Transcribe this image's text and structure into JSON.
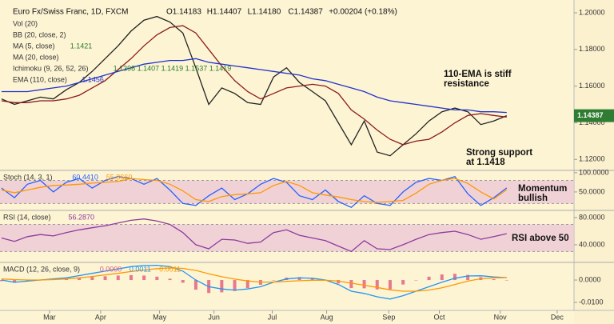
{
  "chart_data": [
    {
      "type": "line",
      "title": "Euro Fx/Swiss Franc, 1D, FXCM",
      "quote": [
        "O1.14183",
        "H1.14407",
        "L1.14180",
        "C1.14387",
        "+0.00204 (+0.18%)"
      ],
      "indicators": [
        {
          "name": "Vol (20)"
        },
        {
          "name": "BB (20, close, 2)"
        },
        {
          "name": "MA (5, close)",
          "legend_value": "1.1421"
        },
        {
          "name": "Ichimoku (9, 26, 52, 26)",
          "legend_value": "1.1398  1.1407  1.1419  1.1537  1.1419"
        }
      ],
      "color": "#222222",
      "values": [
        1.153,
        1.15,
        1.152,
        1.154,
        1.153,
        1.158,
        1.162,
        1.168,
        1.175,
        1.182,
        1.19,
        1.196,
        1.198,
        1.195,
        1.189,
        1.17,
        1.15,
        1.159,
        1.156,
        1.151,
        1.15,
        1.165,
        1.17,
        1.162,
        1.157,
        1.152,
        1.14,
        1.128,
        1.141,
        1.124,
        1.122,
        1.128,
        1.134,
        1.141,
        1.146,
        1.148,
        1.146,
        1.139,
        1.141,
        1.14387
      ],
      "last_price_label": "1.14387",
      "series": [
        {
          "name": "MA (20, close)",
          "color": "#8b1c1c",
          "values": [
            1.152,
            1.151,
            1.151,
            1.152,
            1.152,
            1.153,
            1.155,
            1.159,
            1.163,
            1.169,
            1.175,
            1.182,
            1.188,
            1.192,
            1.193,
            1.189,
            1.18,
            1.171,
            1.163,
            1.157,
            1.153,
            1.156,
            1.159,
            1.16,
            1.161,
            1.16,
            1.156,
            1.147,
            1.142,
            1.136,
            1.131,
            1.128,
            1.13,
            1.131,
            1.135,
            1.14,
            1.144,
            1.145,
            1.144,
            1.1431
          ]
        },
        {
          "name": "EMA (110, close)",
          "color": "#2233cc",
          "legend_value": "1.1456",
          "values": [
            1.157,
            1.157,
            1.157,
            1.158,
            1.159,
            1.16,
            1.162,
            1.164,
            1.166,
            1.168,
            1.17,
            1.172,
            1.173,
            1.174,
            1.174,
            1.175,
            1.173,
            1.172,
            1.171,
            1.17,
            1.169,
            1.168,
            1.167,
            1.166,
            1.164,
            1.163,
            1.161,
            1.159,
            1.157,
            1.154,
            1.152,
            1.151,
            1.15,
            1.149,
            1.148,
            1.147,
            1.147,
            1.146,
            1.146,
            1.1456
          ]
        }
      ],
      "annotations": [
        [
          "110-EMA is stiff",
          "resistance"
        ],
        [
          "Strong support",
          "at 1.1418"
        ]
      ],
      "ylim": [
        1.114,
        1.207
      ],
      "yticks": [
        {
          "value": 1.12,
          "label": "1.12000"
        },
        {
          "value": 1.14,
          "label": "1.14000"
        },
        {
          "value": 1.16,
          "label": "1.16000"
        },
        {
          "value": 1.18,
          "label": "1.18000"
        },
        {
          "value": 1.2,
          "label": "1.20000"
        }
      ],
      "xlim": [
        -0.12,
        44.2
      ],
      "xticks": [
        {
          "value": 3.7,
          "label": "Mar"
        },
        {
          "value": 7.65,
          "label": "Apr"
        },
        {
          "value": 12.2,
          "label": "May"
        },
        {
          "value": 16.4,
          "label": "Jun"
        },
        {
          "value": 20.9,
          "label": "Jul"
        },
        {
          "value": 25.1,
          "label": "Aug"
        },
        {
          "value": 29.9,
          "label": "Sep"
        },
        {
          "value": 33.8,
          "label": "Oct"
        },
        {
          "value": 38.5,
          "label": "Nov"
        },
        {
          "value": 42.9,
          "label": "Dec"
        }
      ]
    },
    {
      "type": "line",
      "label": "Stoch (14, 3, 1)",
      "band": [
        20,
        80
      ],
      "annotations": [
        [
          "Momentum",
          "bullish"
        ]
      ],
      "ylim": [
        2,
        106
      ],
      "yticks": [
        {
          "value": 100,
          "label": "100.0000"
        },
        {
          "value": 50,
          "label": "50.0000"
        }
      ],
      "series": [
        {
          "color": "#2962ff",
          "legend_value": "60.4410",
          "values": [
            60,
            35,
            70,
            80,
            50,
            75,
            85,
            60,
            80,
            90,
            85,
            70,
            85,
            55,
            20,
            15,
            40,
            60,
            30,
            45,
            70,
            85,
            75,
            40,
            30,
            55,
            25,
            10,
            40,
            20,
            15,
            50,
            75,
            85,
            80,
            90,
            45,
            15,
            35,
            60.441
          ]
        },
        {
          "color": "#ff9800",
          "legend_value": "55.8660",
          "values": [
            55,
            48,
            55,
            62,
            67,
            68,
            70,
            73,
            75,
            77,
            85,
            82,
            80,
            70,
            53,
            30,
            25,
            38,
            43,
            45,
            48,
            67,
            77,
            67,
            48,
            42,
            37,
            30,
            25,
            23,
            25,
            28,
            47,
            70,
            80,
            85,
            72,
            50,
            32,
            55.866
          ]
        }
      ]
    },
    {
      "type": "line",
      "label": "RSI (14, close)",
      "band": [
        30,
        70
      ],
      "annotations": [
        [
          "RSI above 50"
        ]
      ],
      "ylim": [
        14,
        90.6
      ],
      "yticks": [
        {
          "value": 80,
          "label": "80.0000"
        },
        {
          "value": 40,
          "label": "40.0000"
        }
      ],
      "series": [
        {
          "color": "#8e3a9e",
          "legend_value": "56.2870",
          "values": [
            50,
            45,
            52,
            55,
            53,
            58,
            62,
            65,
            68,
            72,
            76,
            78,
            75,
            70,
            58,
            40,
            34,
            48,
            47,
            42,
            44,
            58,
            62,
            54,
            50,
            46,
            38,
            30,
            46,
            34,
            33,
            40,
            48,
            55,
            58,
            60,
            55,
            48,
            52,
            56.287
          ]
        }
      ]
    },
    {
      "type": "line",
      "label": "MACD (12, 26, close, 9)",
      "ylim": [
        -0.0136,
        0.0079
      ],
      "yticks": [
        {
          "value": 0,
          "label": "0.0000"
        },
        {
          "value": -0.01,
          "label": "-0.0100"
        }
      ],
      "series": [
        {
          "type": "bar",
          "color": "#e05a7a",
          "legend_value": "0.0000",
          "values": [
            -0.0005,
            -0.0012,
            -0.0005,
            0,
            0.0003,
            0.0005,
            0.001,
            0.0014,
            0.0017,
            0.002,
            0.0022,
            0.002,
            0.0015,
            0.0006,
            -0.0012,
            -0.0043,
            -0.0058,
            -0.0055,
            -0.0049,
            -0.0036,
            -0.0021,
            -0.0001,
            0.0011,
            0.0013,
            0.0009,
            0.0001,
            -0.0015,
            -0.0036,
            -0.0037,
            -0.0042,
            -0.0041,
            -0.002,
            0,
            0.0015,
            0.0025,
            0.0028,
            0.0023,
            0.0013,
            0.0004,
            0
          ]
        },
        {
          "color": "#2196f3",
          "legend_value": "0.0011",
          "values": [
            0,
            -0.001,
            -0.0005,
            0,
            0.0005,
            0.001,
            0.002,
            0.003,
            0.004,
            0.005,
            0.006,
            0.0065,
            0.0066,
            0.006,
            0.004,
            0,
            -0.003,
            -0.004,
            -0.0045,
            -0.004,
            -0.003,
            -0.001,
            0.0005,
            0.001,
            0.0008,
            0,
            -0.002,
            -0.005,
            -0.006,
            -0.0075,
            -0.0085,
            -0.007,
            -0.005,
            -0.003,
            -0.001,
            0.0008,
            0.0018,
            0.0019,
            0.0014,
            0.0011
          ]
        },
        {
          "color": "#ff9800",
          "legend_value": "0.0011",
          "values": [
            0.0005,
            0.0002,
            0,
            0,
            0.0002,
            0.0005,
            0.001,
            0.0016,
            0.0023,
            0.003,
            0.0038,
            0.0045,
            0.0051,
            0.0054,
            0.0052,
            0.0043,
            0.0028,
            0.0015,
            0.0004,
            -0.0004,
            -0.0009,
            -0.0009,
            -0.0006,
            -0.0003,
            -0.0001,
            -0.0001,
            -0.0005,
            -0.0014,
            -0.0023,
            -0.0033,
            -0.0044,
            -0.005,
            -0.005,
            -0.0045,
            -0.0035,
            -0.002,
            -0.0005,
            0.0006,
            0.001,
            0.0011
          ]
        }
      ]
    }
  ]
}
